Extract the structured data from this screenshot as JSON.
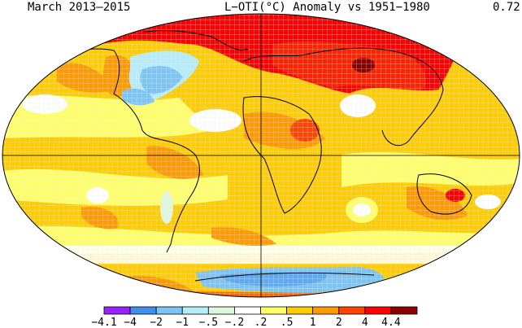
{
  "header": {
    "period": "March 2013–2015",
    "title": "L−OTI(°C) Anomaly vs 1951−1980",
    "global_mean": "0.72"
  },
  "legend": {
    "colors": [
      "#9b20fa",
      "#3f8ff0",
      "#7cc4f4",
      "#b5ecf9",
      "#dcf7dc",
      "#ffffff",
      "#ffff66",
      "#ffcc00",
      "#ff9900",
      "#ff4400",
      "#ff0000",
      "#8a0000"
    ],
    "ticks": [
      "−4.1",
      "−4",
      "−2",
      "−1",
      "−.5",
      "−.2",
      ".2",
      ".5",
      "1",
      "2",
      "4",
      "4.4"
    ]
  }
}
